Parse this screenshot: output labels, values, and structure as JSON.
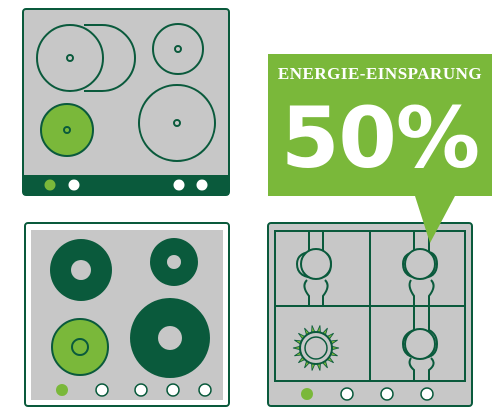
{
  "callout": {
    "heading": "ENERGIE-EINSPARUNG",
    "value": "50%"
  },
  "colors": {
    "dark_green": "#0a5a3c",
    "light_green": "#7ab83a",
    "panel_gray": "#c7c7c7",
    "white": "#ffffff"
  },
  "stoves": [
    {
      "name": "induction-hob",
      "heated_zone": "front-left",
      "indicator_lights": 4
    },
    {
      "name": "electric-hob",
      "heated_zone": "front-left",
      "indicator_lights": 5
    },
    {
      "name": "gas-hob",
      "lit_burner": "front-left",
      "indicator_lights": 4
    }
  ]
}
